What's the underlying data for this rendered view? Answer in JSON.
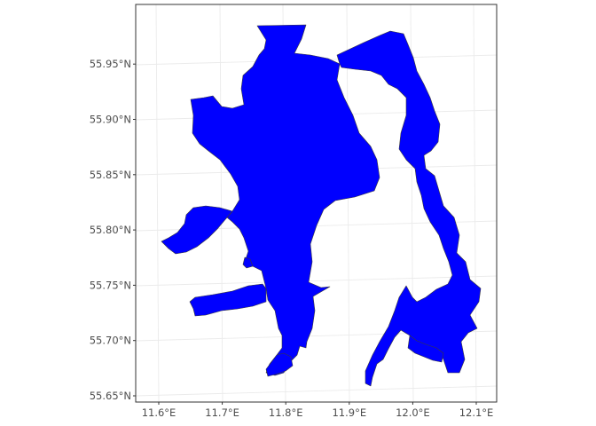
{
  "map": {
    "type": "geographic",
    "fill_color": "#0000ff",
    "outline_color": "#3a3a3a",
    "panel_border_color": "#333333",
    "grid_color": "#ebebeb",
    "background": "#ffffff",
    "x_axis": {
      "ticks": [
        {
          "value": 11.6,
          "label": "11.6°E"
        },
        {
          "value": 11.7,
          "label": "11.7°E"
        },
        {
          "value": 11.8,
          "label": "11.8°E"
        },
        {
          "value": 11.9,
          "label": "11.9°E"
        },
        {
          "value": 12.0,
          "label": "12.0°E"
        },
        {
          "value": 12.1,
          "label": "12.1°E"
        }
      ]
    },
    "y_axis": {
      "ticks": [
        {
          "value": 55.65,
          "label": "55.65°N"
        },
        {
          "value": 55.7,
          "label": "55.70°N"
        },
        {
          "value": 55.75,
          "label": "55.75°N"
        },
        {
          "value": 55.8,
          "label": "55.80°N"
        },
        {
          "value": 55.85,
          "label": "55.85°N"
        },
        {
          "value": 55.9,
          "label": "55.90°N"
        },
        {
          "value": 55.95,
          "label": "55.95°N"
        }
      ]
    }
  }
}
